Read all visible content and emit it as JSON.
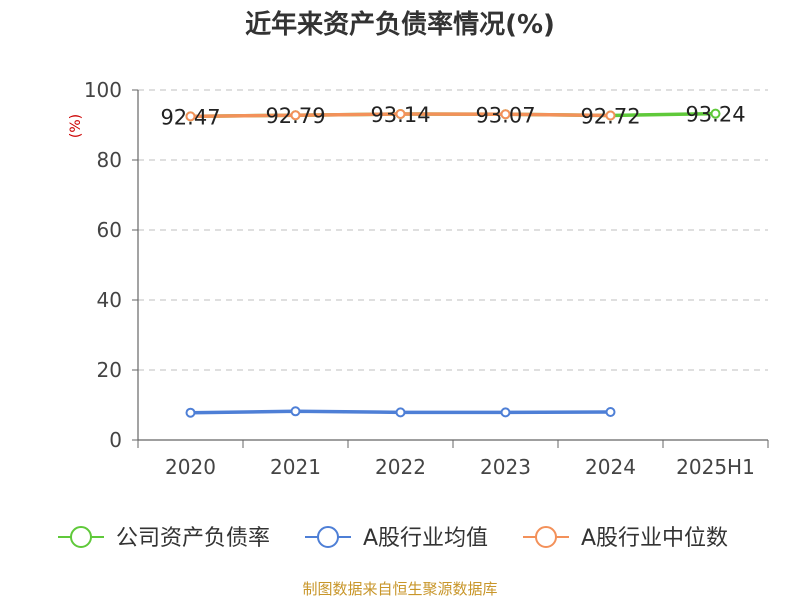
{
  "title": "近年来资产负债率情况(%)",
  "source": "制图数据来自恒生聚源数据库",
  "chart_data": {
    "type": "line",
    "title": "近年来资产负债率情况(%)",
    "ylabel": "(%)",
    "xlabel": "",
    "ylim": [
      0,
      100
    ],
    "yticks": [
      0,
      20,
      40,
      60,
      80,
      100
    ],
    "categories": [
      "2020",
      "2021",
      "2022",
      "2023",
      "2024",
      "2025H1"
    ],
    "grid": true,
    "legend_position": "bottom",
    "series": [
      {
        "name": "公司资产负债率",
        "color": "#5fc93a",
        "values": [
          92.47,
          92.79,
          93.14,
          93.07,
          92.72,
          93.24
        ],
        "labels": [
          "92.47",
          "92.79",
          "93.14",
          "93.07",
          "92.72",
          "93.24"
        ]
      },
      {
        "name": "A股行业均值",
        "color": "#4e7fd6",
        "values": [
          7.8,
          8.2,
          7.9,
          7.9,
          8.0,
          null
        ]
      },
      {
        "name": "A股行业中位数",
        "color": "#f3915a",
        "values": [
          92.47,
          92.79,
          93.14,
          93.07,
          92.72,
          null
        ]
      }
    ]
  }
}
